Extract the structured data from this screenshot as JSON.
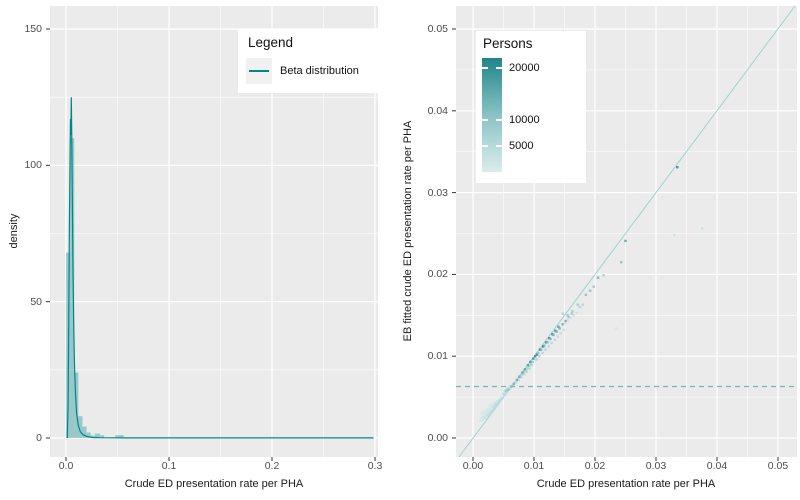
{
  "figure": {
    "background": "#ffffff",
    "panel_background": "#ebebeb",
    "grid_color": "#ffffff",
    "tick_text_color": "#4d4d4d",
    "accent_teal": "#00868b",
    "light_teal": "#9ed2cf"
  },
  "chart_data": [
    {
      "type": "area",
      "title": "",
      "xlabel": "Crude ED presentation rate per PHA",
      "ylabel": "density",
      "x_tick_labels": [
        "0.0",
        "0.1",
        "0.2",
        "0.3"
      ],
      "x_tick_values": [
        0.0,
        0.1,
        0.2,
        0.3
      ],
      "y_tick_labels": [
        "0",
        "50",
        "100",
        "150"
      ],
      "y_tick_values": [
        0,
        50,
        100,
        150
      ],
      "xlim": [
        -0.0155,
        0.3029
      ],
      "ylim": [
        -7,
        158
      ],
      "grid": true,
      "legend": {
        "title": "Legend",
        "position": "inside-top-right",
        "items": [
          {
            "label": "Beta distribution",
            "color": "#00868b"
          }
        ]
      },
      "line_color": "#00868b",
      "hist_fill": "rgba(0,134,139,0.35)",
      "histogram_bins": [
        [
          0.0,
          0.004,
          68
        ],
        [
          0.004,
          0.008,
          110
        ],
        [
          0.008,
          0.012,
          24
        ],
        [
          0.012,
          0.016,
          8
        ],
        [
          0.016,
          0.02,
          4.2
        ],
        [
          0.02,
          0.024,
          2.0
        ],
        [
          0.024,
          0.028,
          0.9
        ],
        [
          0.028,
          0.033,
          1.6
        ],
        [
          0.033,
          0.037,
          1.0
        ],
        [
          0.048,
          0.056,
          1.1
        ]
      ],
      "density_curve": [
        [
          0.0013,
          0
        ],
        [
          0.002,
          12
        ],
        [
          0.0026,
          40
        ],
        [
          0.0033,
          78
        ],
        [
          0.004,
          105
        ],
        [
          0.0044,
          117
        ],
        [
          0.0047,
          111
        ],
        [
          0.0051,
          125
        ],
        [
          0.0055,
          113
        ],
        [
          0.006,
          93
        ],
        [
          0.0067,
          65
        ],
        [
          0.0074,
          44
        ],
        [
          0.0082,
          28
        ],
        [
          0.0092,
          16
        ],
        [
          0.0103,
          9
        ],
        [
          0.0118,
          4.8
        ],
        [
          0.0138,
          2.4
        ],
        [
          0.0165,
          1.2
        ],
        [
          0.0205,
          0.5
        ],
        [
          0.026,
          0.2
        ],
        [
          0.032,
          0.1
        ],
        [
          0.06,
          0.05
        ],
        [
          0.2985,
          0.05
        ]
      ]
    },
    {
      "type": "scatter",
      "title": "",
      "xlabel": "Crude ED presentation rate per PHA",
      "ylabel": "EB fitted crude ED presentation rate per PHA",
      "x_tick_labels": [
        "0.00",
        "0.01",
        "0.02",
        "0.03",
        "0.04",
        "0.05"
      ],
      "x_tick_values": [
        0.0,
        0.01,
        0.02,
        0.03,
        0.04,
        0.05
      ],
      "y_tick_labels": [
        "0.00",
        "0.01",
        "0.02",
        "0.03",
        "0.04",
        "0.05"
      ],
      "y_tick_values": [
        0.0,
        0.01,
        0.02,
        0.03,
        0.04,
        0.05
      ],
      "xlim": [
        -0.0028,
        0.0531
      ],
      "ylim": [
        -0.0023,
        0.0528
      ],
      "grid": true,
      "identity_line": {
        "color": "#9ed2cf",
        "style": "solid"
      },
      "dashed_line": {
        "y": 0.0063,
        "color": "#74b9b6",
        "style": "dashed"
      },
      "colorbar": {
        "title": "Persons",
        "tick_labels": [
          "20000",
          "10000",
          "5000"
        ],
        "tick_values": [
          20000,
          10000,
          5000
        ],
        "min": 0,
        "max": 22000,
        "low_color": "#dcedec",
        "high_color": "#177d85"
      },
      "points_format": [
        "crude_rate",
        "eb_fitted_rate",
        "persons"
      ],
      "points": [
        [
          0.0012,
          0.0021,
          900
        ],
        [
          0.0015,
          0.0024,
          1100
        ],
        [
          0.0018,
          0.0026,
          1300
        ],
        [
          0.0021,
          0.0028,
          1500
        ],
        [
          0.0024,
          0.003,
          1700
        ],
        [
          0.0027,
          0.0032,
          1600
        ],
        [
          0.003,
          0.0034,
          2000
        ],
        [
          0.0033,
          0.0037,
          2200
        ],
        [
          0.0036,
          0.0039,
          2400
        ],
        [
          0.0039,
          0.0041,
          2600
        ],
        [
          0.0042,
          0.0044,
          2800
        ],
        [
          0.0045,
          0.0047,
          3000
        ],
        [
          0.0048,
          0.0049,
          3200
        ],
        [
          0.0051,
          0.0052,
          3400
        ],
        [
          0.0013,
          0.0026,
          700
        ],
        [
          0.0016,
          0.0029,
          800
        ],
        [
          0.0019,
          0.0031,
          900
        ],
        [
          0.0022,
          0.0033,
          1000
        ],
        [
          0.0025,
          0.0035,
          1200
        ],
        [
          0.0028,
          0.0037,
          1400
        ],
        [
          0.0031,
          0.0039,
          1500
        ],
        [
          0.0034,
          0.0041,
          1700
        ],
        [
          0.0037,
          0.0043,
          1900
        ],
        [
          0.004,
          0.0045,
          2100
        ],
        [
          0.0043,
          0.0046,
          2300
        ],
        [
          0.0046,
          0.0048,
          2500
        ],
        [
          0.002,
          0.0024,
          2400
        ],
        [
          0.0023,
          0.0027,
          2600
        ],
        [
          0.0026,
          0.0029,
          2800
        ],
        [
          0.0029,
          0.0031,
          3000
        ],
        [
          0.0032,
          0.0034,
          3200
        ],
        [
          0.0035,
          0.0036,
          3400
        ],
        [
          0.0038,
          0.004,
          3600
        ],
        [
          0.0041,
          0.0043,
          3800
        ],
        [
          0.0044,
          0.0045,
          4000
        ],
        [
          0.0047,
          0.0048,
          4200
        ],
        [
          0.0014,
          0.003,
          600
        ],
        [
          0.0017,
          0.0033,
          650
        ],
        [
          0.0023,
          0.0036,
          700
        ],
        [
          0.0027,
          0.004,
          750
        ],
        [
          0.0031,
          0.0042,
          800
        ],
        [
          0.0035,
          0.0044,
          850
        ],
        [
          0.0016,
          0.0022,
          1800
        ],
        [
          0.0019,
          0.0025,
          2000
        ],
        [
          0.0025,
          0.0028,
          2700
        ],
        [
          0.0028,
          0.003,
          2900
        ],
        [
          0.0034,
          0.0038,
          3100
        ],
        [
          0.0037,
          0.0041,
          3300
        ],
        [
          0.0022,
          0.003,
          1250
        ],
        [
          0.0026,
          0.0033,
          1350
        ],
        [
          0.005,
          0.0054,
          3600
        ],
        [
          0.0053,
          0.0056,
          3800
        ],
        [
          0.0056,
          0.0058,
          4000
        ],
        [
          0.0059,
          0.006,
          4200
        ],
        [
          0.0062,
          0.0062,
          4400
        ],
        [
          0.0065,
          0.0065,
          4600
        ],
        [
          0.0068,
          0.0067,
          4800
        ],
        [
          0.0071,
          0.007,
          5000
        ],
        [
          0.0074,
          0.0072,
          5200
        ],
        [
          0.0077,
          0.0075,
          5400
        ],
        [
          0.008,
          0.0077,
          5600
        ],
        [
          0.0083,
          0.008,
          5800
        ],
        [
          0.0086,
          0.0082,
          6000
        ],
        [
          0.0089,
          0.0085,
          6200
        ],
        [
          0.0092,
          0.0088,
          6400
        ],
        [
          0.0095,
          0.009,
          6600
        ],
        [
          0.0098,
          0.0093,
          6800
        ],
        [
          0.0052,
          0.0057,
          2900
        ],
        [
          0.0057,
          0.0061,
          3100
        ],
        [
          0.0061,
          0.0063,
          3300
        ],
        [
          0.0066,
          0.0066,
          3500
        ],
        [
          0.007,
          0.0068,
          3700
        ],
        [
          0.0075,
          0.0071,
          3900
        ],
        [
          0.0079,
          0.0074,
          4100
        ],
        [
          0.0084,
          0.0078,
          4300
        ],
        [
          0.0088,
          0.0081,
          4500
        ],
        [
          0.0093,
          0.0085,
          4700
        ],
        [
          0.0097,
          0.0089,
          4900
        ],
        [
          0.0054,
          0.0058,
          8000
        ],
        [
          0.0058,
          0.0059,
          9000
        ],
        [
          0.0063,
          0.0063,
          10000
        ],
        [
          0.0067,
          0.0066,
          11000
        ],
        [
          0.0072,
          0.0071,
          12000
        ],
        [
          0.0076,
          0.0075,
          13000
        ],
        [
          0.0081,
          0.008,
          14000
        ],
        [
          0.0085,
          0.0084,
          15000
        ],
        [
          0.009,
          0.0089,
          16000
        ],
        [
          0.0094,
          0.0093,
          17000
        ],
        [
          0.0099,
          0.0097,
          18000
        ],
        [
          0.0102,
          0.01,
          19000
        ],
        [
          0.0105,
          0.0102,
          20000
        ],
        [
          0.011,
          0.0108,
          21000
        ],
        [
          0.0115,
          0.0112,
          22000
        ],
        [
          0.012,
          0.0117,
          20000
        ],
        [
          0.0125,
          0.0122,
          19000
        ],
        [
          0.013,
          0.0127,
          18000
        ],
        [
          0.0135,
          0.0131,
          17000
        ],
        [
          0.014,
          0.0136,
          16000
        ],
        [
          0.0104,
          0.0096,
          6000
        ],
        [
          0.0109,
          0.01,
          5500
        ],
        [
          0.0114,
          0.0104,
          5000
        ],
        [
          0.0119,
          0.0108,
          4800
        ],
        [
          0.0124,
          0.0112,
          4600
        ],
        [
          0.0129,
          0.0116,
          4400
        ],
        [
          0.0134,
          0.012,
          4200
        ],
        [
          0.0139,
          0.0124,
          4000
        ],
        [
          0.0144,
          0.0128,
          3800
        ],
        [
          0.0149,
          0.0132,
          3600
        ],
        [
          0.0107,
          0.0104,
          9000
        ],
        [
          0.0112,
          0.0108,
          9500
        ],
        [
          0.0117,
          0.0113,
          10000
        ],
        [
          0.0122,
          0.0117,
          10500
        ],
        [
          0.0127,
          0.0121,
          11000
        ],
        [
          0.0132,
          0.0126,
          11500
        ],
        [
          0.0137,
          0.013,
          12000
        ],
        [
          0.0142,
          0.0134,
          12500
        ],
        [
          0.0147,
          0.0139,
          13000
        ],
        [
          0.0152,
          0.0143,
          13500
        ],
        [
          0.0157,
          0.0148,
          9000
        ],
        [
          0.0162,
          0.0152,
          8000
        ],
        [
          0.0147,
          0.0152,
          5000
        ],
        [
          0.015,
          0.014,
          3000
        ],
        [
          0.0155,
          0.0144,
          2800
        ],
        [
          0.016,
          0.0147,
          2600
        ],
        [
          0.0165,
          0.015,
          2400
        ],
        [
          0.017,
          0.0153,
          2200
        ],
        [
          0.0175,
          0.016,
          5200
        ],
        [
          0.018,
          0.0163,
          4800
        ],
        [
          0.0155,
          0.015,
          7000
        ],
        [
          0.0163,
          0.0155,
          6500
        ],
        [
          0.0172,
          0.0163,
          7500
        ],
        [
          0.0185,
          0.0175,
          9000
        ],
        [
          0.0192,
          0.018,
          8500
        ],
        [
          0.0198,
          0.0185,
          8000
        ],
        [
          0.0205,
          0.0196,
          12000
        ],
        [
          0.0214,
          0.0199,
          6000
        ],
        [
          0.025,
          0.0241,
          15000
        ],
        [
          0.0335,
          0.0331,
          20000
        ],
        [
          0.0376,
          0.0256,
          2500
        ],
        [
          0.033,
          0.0248,
          3000
        ],
        [
          0.0235,
          0.0134,
          1200
        ],
        [
          0.0243,
          0.0215,
          9000
        ]
      ]
    }
  ]
}
